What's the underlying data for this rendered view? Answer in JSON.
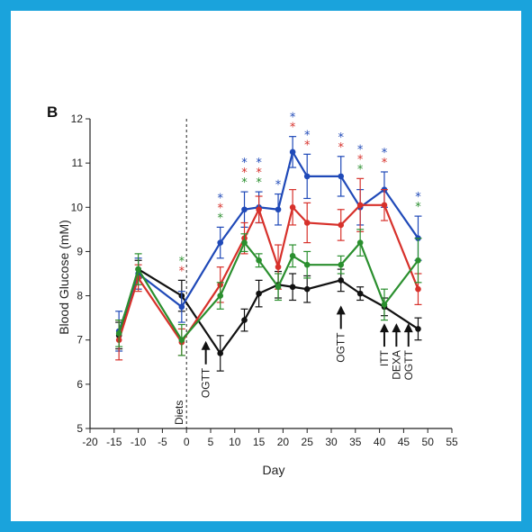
{
  "chart_data": {
    "type": "line",
    "panel_label": "B",
    "title": "",
    "xlabel": "Day",
    "ylabel": "Blood Glucose (mM)",
    "xlim": [
      -20,
      55
    ],
    "ylim": [
      5,
      12
    ],
    "xticks": [
      -20,
      -15,
      -10,
      -5,
      0,
      5,
      10,
      15,
      20,
      25,
      30,
      35,
      40,
      45,
      50,
      55
    ],
    "yticks": [
      5,
      6,
      7,
      8,
      9,
      10,
      11,
      12
    ],
    "grid": false,
    "legend": "none",
    "diet_line_x": 0,
    "series": [
      {
        "color": "#111111",
        "points": [
          {
            "x": -14,
            "y": 7.1,
            "err": 0.3
          },
          {
            "x": -10,
            "y": 8.6,
            "err": 0.2
          },
          {
            "x": -1,
            "y": 8.0,
            "err": 0.35
          },
          {
            "x": 7,
            "y": 6.7,
            "err": 0.4
          },
          {
            "x": 12,
            "y": 7.45,
            "err": 0.25
          },
          {
            "x": 15,
            "y": 8.05,
            "err": 0.3
          },
          {
            "x": 19,
            "y": 8.25,
            "err": 0.3
          },
          {
            "x": 22,
            "y": 8.2,
            "err": 0.3
          },
          {
            "x": 25,
            "y": 8.15,
            "err": 0.3
          },
          {
            "x": 32,
            "y": 8.35,
            "err": 0.25
          },
          {
            "x": 36,
            "y": 8.05,
            "err": 0.15
          },
          {
            "x": 41,
            "y": 7.75,
            "err": 0.2
          },
          {
            "x": 48,
            "y": 7.25,
            "err": 0.25
          }
        ]
      },
      {
        "color": "#1f49b8",
        "points": [
          {
            "x": -14,
            "y": 7.2,
            "err": 0.45
          },
          {
            "x": -10,
            "y": 8.5,
            "err": 0.35
          },
          {
            "x": -1,
            "y": 7.75,
            "err": 0.35
          },
          {
            "x": 7,
            "y": 9.2,
            "err": 0.35
          },
          {
            "x": 12,
            "y": 9.95,
            "err": 0.4
          },
          {
            "x": 15,
            "y": 10.0,
            "err": 0.35
          },
          {
            "x": 19,
            "y": 9.95,
            "err": 0.35
          },
          {
            "x": 22,
            "y": 11.25,
            "err": 0.35
          },
          {
            "x": 25,
            "y": 10.7,
            "err": 0.5
          },
          {
            "x": 32,
            "y": 10.7,
            "err": 0.45
          },
          {
            "x": 36,
            "y": 10.0,
            "err": 0.4
          },
          {
            "x": 41,
            "y": 10.4,
            "err": 0.4
          },
          {
            "x": 48,
            "y": 9.3,
            "err": 0.5
          }
        ]
      },
      {
        "color": "#d7312b",
        "points": [
          {
            "x": -14,
            "y": 7.0,
            "err": 0.45
          },
          {
            "x": -10,
            "y": 8.4,
            "err": 0.3
          },
          {
            "x": -1,
            "y": 6.95,
            "err": 0.3
          },
          {
            "x": 7,
            "y": 8.25,
            "err": 0.4
          },
          {
            "x": 12,
            "y": 9.3,
            "err": 0.35
          },
          {
            "x": 15,
            "y": 9.95,
            "err": 0.3
          },
          {
            "x": 19,
            "y": 8.65,
            "err": 0.5
          },
          {
            "x": 22,
            "y": 10.0,
            "err": 0.4
          },
          {
            "x": 25,
            "y": 9.65,
            "err": 0.45
          },
          {
            "x": 32,
            "y": 9.6,
            "err": 0.35
          },
          {
            "x": 36,
            "y": 10.05,
            "err": 0.6
          },
          {
            "x": 41,
            "y": 10.05,
            "err": 0.35
          },
          {
            "x": 48,
            "y": 8.15,
            "err": 0.35
          }
        ]
      },
      {
        "color": "#2a8f2e",
        "points": [
          {
            "x": -14,
            "y": 7.15,
            "err": 0.3
          },
          {
            "x": -10,
            "y": 8.6,
            "err": 0.35
          },
          {
            "x": -1,
            "y": 7.0,
            "err": 0.35
          },
          {
            "x": 7,
            "y": 8.0,
            "err": 0.3
          },
          {
            "x": 12,
            "y": 9.2,
            "err": 0.2
          },
          {
            "x": 15,
            "y": 8.8,
            "err": 0.15
          },
          {
            "x": 19,
            "y": 8.2,
            "err": 0.3
          },
          {
            "x": 22,
            "y": 8.9,
            "err": 0.25
          },
          {
            "x": 25,
            "y": 8.7,
            "err": 0.3
          },
          {
            "x": 32,
            "y": 8.7,
            "err": 0.2
          },
          {
            "x": 36,
            "y": 9.2,
            "err": 0.3
          },
          {
            "x": 41,
            "y": 7.8,
            "err": 0.35
          },
          {
            "x": 48,
            "y": 8.8,
            "err": 0.5
          }
        ]
      }
    ],
    "significance_stars": [
      {
        "x": -1,
        "colors": [
          "#2a8f2e",
          "#d7312b"
        ]
      },
      {
        "x": 7,
        "colors": [
          "#1f49b8",
          "#d7312b",
          "#2a8f2e"
        ]
      },
      {
        "x": 12,
        "colors": [
          "#1f49b8",
          "#d7312b",
          "#2a8f2e"
        ]
      },
      {
        "x": 15,
        "colors": [
          "#1f49b8",
          "#d7312b",
          "#2a8f2e"
        ]
      },
      {
        "x": 19,
        "colors": [
          "#1f49b8"
        ]
      },
      {
        "x": 22,
        "colors": [
          "#1f49b8",
          "#d7312b"
        ]
      },
      {
        "x": 25,
        "colors": [
          "#1f49b8",
          "#d7312b"
        ]
      },
      {
        "x": 32,
        "colors": [
          "#1f49b8",
          "#d7312b"
        ]
      },
      {
        "x": 36,
        "colors": [
          "#1f49b8",
          "#d7312b",
          "#2a8f2e"
        ]
      },
      {
        "x": 41,
        "colors": [
          "#1f49b8",
          "#d7312b"
        ]
      },
      {
        "x": 48,
        "colors": [
          "#1f49b8",
          "#2a8f2e"
        ]
      }
    ],
    "annotations": [
      {
        "label": "Diets",
        "x": 0,
        "arrow": false
      },
      {
        "label": "OGTT",
        "x": 4,
        "arrow": true
      },
      {
        "label": "OGTT",
        "x": 32,
        "arrow": true
      },
      {
        "label": "ITT",
        "x": 41,
        "arrow": true
      },
      {
        "label": "DEXA",
        "x": 43.5,
        "arrow": true
      },
      {
        "label": "OGTT",
        "x": 46,
        "arrow": true
      }
    ]
  }
}
